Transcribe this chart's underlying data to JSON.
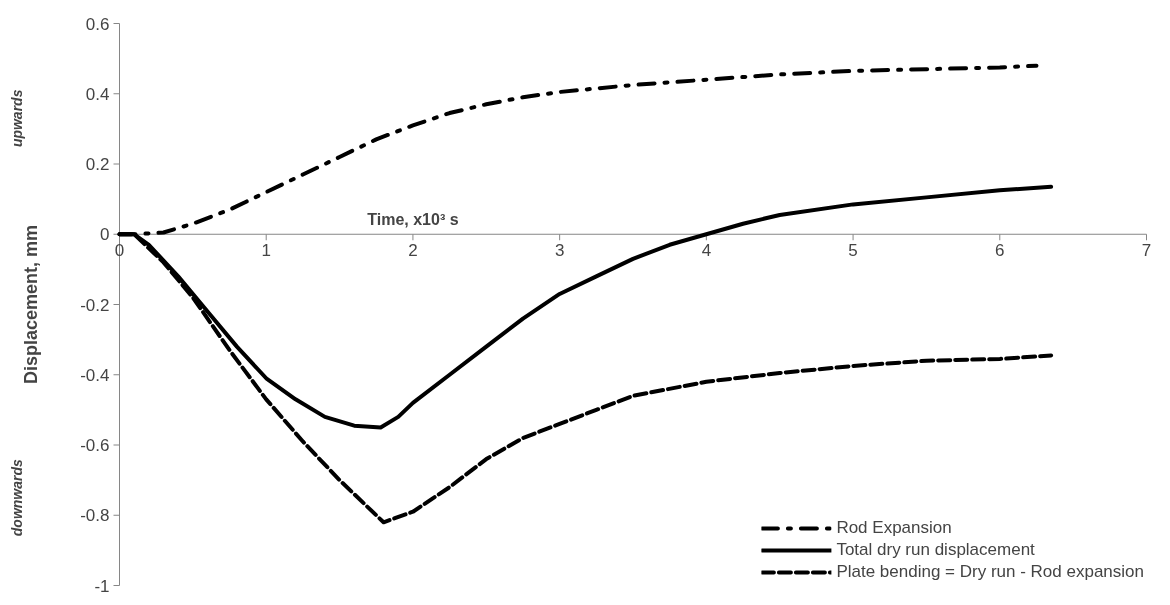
{
  "chart_data": {
    "type": "line",
    "xlabel": "Time, x10³ s",
    "ylabel": "Displacement, mm",
    "annotations": [
      "upwards",
      "downwards"
    ],
    "xlim": [
      0,
      7
    ],
    "xticks": [
      0,
      1,
      2,
      3,
      4,
      5,
      6,
      7
    ],
    "ylim": [
      -1,
      0.6
    ],
    "yticks": [
      -1,
      -0.8,
      -0.6,
      -0.4,
      -0.2,
      0,
      0.2,
      0.4,
      0.6
    ],
    "grid": false,
    "legend": "bottom right",
    "series": [
      {
        "name": "Rod Expansion",
        "color": "#000000",
        "line_style": "dashdot",
        "x": [
          0,
          0.1,
          0.3,
          0.5,
          0.75,
          1,
          1.25,
          1.5,
          1.75,
          2,
          2.25,
          2.5,
          2.75,
          3,
          3.5,
          4,
          4.5,
          5,
          5.5,
          6,
          6.25
        ],
        "values": [
          0,
          0,
          0.005,
          0.03,
          0.07,
          0.12,
          0.17,
          0.22,
          0.27,
          0.31,
          0.345,
          0.37,
          0.39,
          0.405,
          0.425,
          0.44,
          0.455,
          0.465,
          0.47,
          0.475,
          0.48
        ]
      },
      {
        "name": "Total dry run displacement",
        "color": "#000000",
        "line_style": "solid",
        "x": [
          0,
          0.1,
          0.2,
          0.4,
          0.6,
          0.8,
          1,
          1.2,
          1.4,
          1.6,
          1.78,
          1.9,
          2,
          2.25,
          2.5,
          2.75,
          3,
          3.25,
          3.5,
          3.75,
          4,
          4.25,
          4.5,
          5,
          5.5,
          6,
          6.35
        ],
        "values": [
          0,
          0,
          -0.03,
          -0.12,
          -0.22,
          -0.32,
          -0.41,
          -0.47,
          -0.52,
          -0.545,
          -0.55,
          -0.52,
          -0.48,
          -0.4,
          -0.32,
          -0.24,
          -0.17,
          -0.12,
          -0.07,
          -0.03,
          0,
          0.03,
          0.055,
          0.085,
          0.105,
          0.125,
          0.135
        ]
      },
      {
        "name": "Plate bending = Dry run - Rod expansion",
        "color": "#000000",
        "line_style": "dashed",
        "x": [
          0,
          0.1,
          0.3,
          0.5,
          0.75,
          1,
          1.25,
          1.5,
          1.75,
          1.8,
          2,
          2.25,
          2.5,
          2.75,
          3,
          3.25,
          3.5,
          4,
          4.5,
          5,
          5.5,
          6,
          6.35
        ],
        "values": [
          0,
          0,
          -0.08,
          -0.18,
          -0.33,
          -0.47,
          -0.59,
          -0.7,
          -0.8,
          -0.82,
          -0.79,
          -0.72,
          -0.64,
          -0.58,
          -0.54,
          -0.5,
          -0.46,
          -0.42,
          -0.395,
          -0.375,
          -0.36,
          -0.355,
          -0.345
        ]
      }
    ]
  }
}
